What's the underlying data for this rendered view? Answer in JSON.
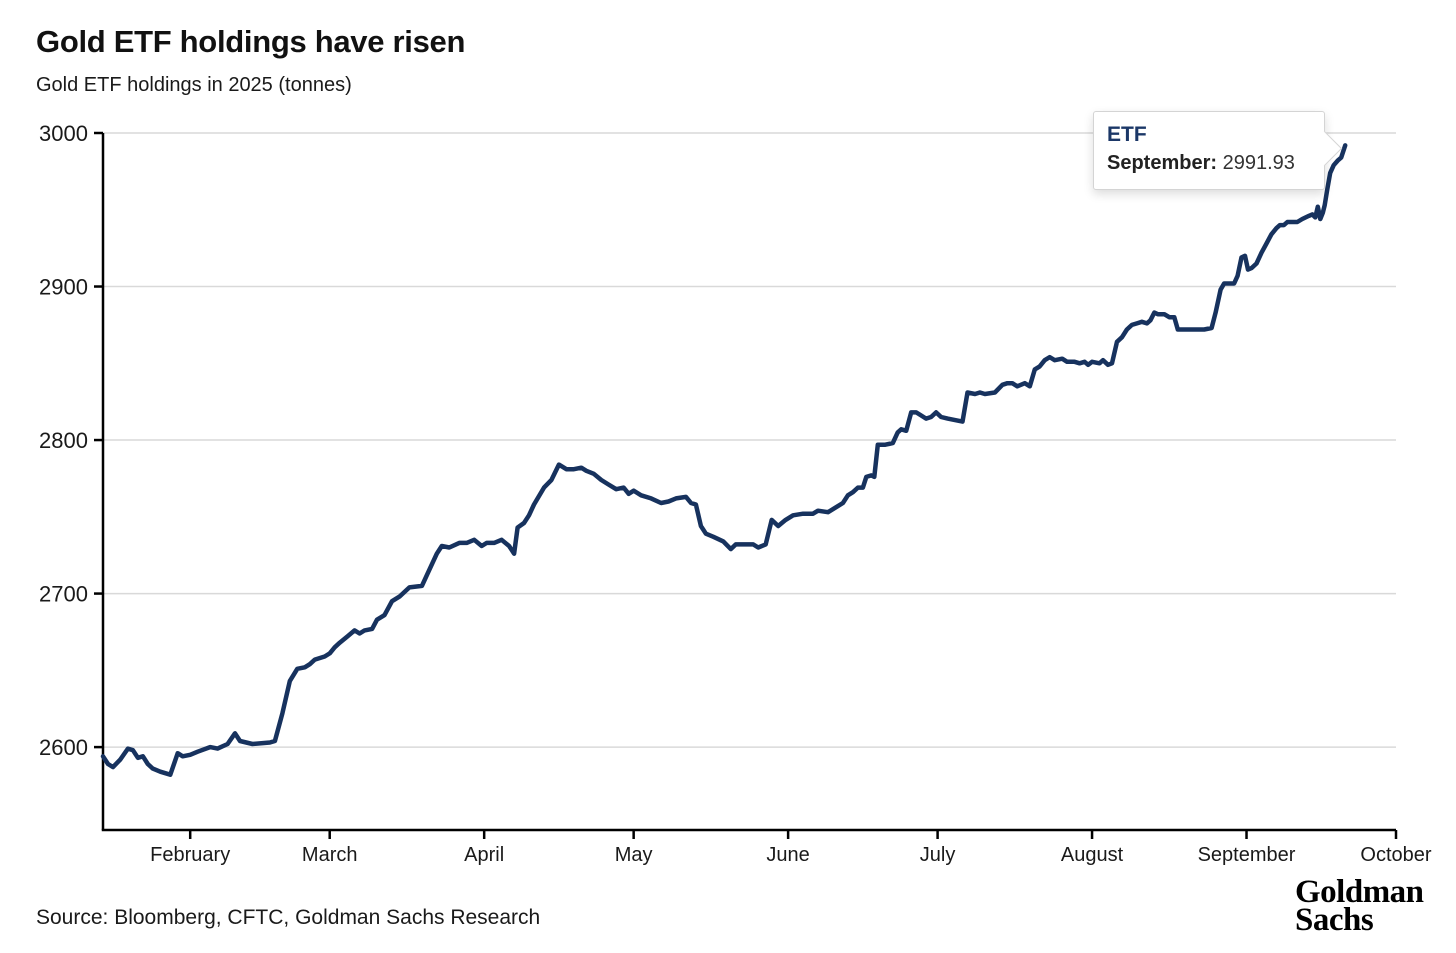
{
  "header": {
    "title": "Gold ETF holdings have risen",
    "subtitle": "Gold ETF holdings in 2025 (tonnes)"
  },
  "tooltip": {
    "series": "ETF",
    "month_label": "September:",
    "value": "2991.93"
  },
  "footer": {
    "source": "Source: Bloomberg, CFTC, Goldman Sachs Research",
    "logo_line1": "Goldman",
    "logo_line2": "Sachs"
  },
  "chart_data": {
    "type": "line",
    "title": "Gold ETF holdings have risen",
    "subtitle": "Gold ETF holdings in 2025 (tonnes)",
    "unit": "tonnes",
    "year": "2025",
    "grid": "horizontal",
    "legend": "none",
    "line_color": "#17325e",
    "grid_color": "#d9d9d9",
    "axis_color": "#000000",
    "label_color": "#1a1a1a",
    "x_axis": {
      "tick_labels": [
        "February",
        "March",
        "April",
        "May",
        "June",
        "July",
        "August",
        "September",
        "October"
      ],
      "tick_days": [
        32,
        60,
        91,
        121,
        152,
        182,
        213,
        244,
        274
      ],
      "xlim_days": [
        14.5,
        274
      ]
    },
    "y_axis": {
      "ticks": [
        2600,
        2700,
        2800,
        2900,
        3000
      ],
      "ylim": [
        2546,
        3000
      ]
    },
    "annotation": {
      "series": "ETF",
      "month": "September",
      "value": 2991.93
    },
    "series": [
      {
        "name": "ETF",
        "points": [
          [
            14.5,
            2594
          ],
          [
            15.5,
            2589
          ],
          [
            16.5,
            2587
          ],
          [
            18,
            2592
          ],
          [
            19.5,
            2599
          ],
          [
            20.5,
            2598
          ],
          [
            21.5,
            2593
          ],
          [
            22.5,
            2594
          ],
          [
            23.5,
            2589
          ],
          [
            24.5,
            2586
          ],
          [
            26,
            2584
          ],
          [
            28,
            2582
          ],
          [
            29.5,
            2596
          ],
          [
            30.5,
            2594
          ],
          [
            32,
            2595
          ],
          [
            33.5,
            2597
          ],
          [
            36,
            2600
          ],
          [
            37.5,
            2599
          ],
          [
            39.5,
            2602
          ],
          [
            41,
            2609
          ],
          [
            42,
            2604
          ],
          [
            44.5,
            2602
          ],
          [
            48,
            2603
          ],
          [
            49,
            2604
          ],
          [
            50.5,
            2622
          ],
          [
            52,
            2643
          ],
          [
            53.5,
            2651
          ],
          [
            55,
            2652
          ],
          [
            56,
            2654
          ],
          [
            57,
            2657
          ],
          [
            59,
            2659
          ],
          [
            60,
            2661
          ],
          [
            61,
            2665
          ],
          [
            62,
            2668
          ],
          [
            63.5,
            2672
          ],
          [
            65,
            2676
          ],
          [
            66,
            2674
          ],
          [
            67,
            2676
          ],
          [
            68.5,
            2677
          ],
          [
            69.5,
            2683
          ],
          [
            71,
            2686
          ],
          [
            72.5,
            2695
          ],
          [
            74,
            2698
          ],
          [
            76,
            2704
          ],
          [
            78.5,
            2705
          ],
          [
            79.5,
            2712
          ],
          [
            81.5,
            2726
          ],
          [
            82.5,
            2731
          ],
          [
            84,
            2730
          ],
          [
            86,
            2733
          ],
          [
            87.5,
            2733
          ],
          [
            89,
            2735
          ],
          [
            90.5,
            2731
          ],
          [
            91.5,
            2733
          ],
          [
            93,
            2733
          ],
          [
            94.5,
            2735
          ],
          [
            96,
            2731
          ],
          [
            97,
            2726
          ],
          [
            97.7,
            2743
          ],
          [
            99,
            2746
          ],
          [
            100,
            2751
          ],
          [
            101,
            2758
          ],
          [
            103,
            2769
          ],
          [
            104.5,
            2774
          ],
          [
            106,
            2784
          ],
          [
            107.5,
            2781
          ],
          [
            109,
            2781
          ],
          [
            110.5,
            2782
          ],
          [
            111.5,
            2780
          ],
          [
            113,
            2778
          ],
          [
            114.5,
            2774
          ],
          [
            116,
            2771
          ],
          [
            117.5,
            2768
          ],
          [
            119,
            2769
          ],
          [
            120,
            2765
          ],
          [
            121,
            2767
          ],
          [
            122.5,
            2764
          ],
          [
            124.5,
            2762
          ],
          [
            126.5,
            2759
          ],
          [
            128,
            2760
          ],
          [
            129.5,
            2762
          ],
          [
            131.5,
            2763
          ],
          [
            132.5,
            2759
          ],
          [
            133.5,
            2758
          ],
          [
            134.5,
            2744
          ],
          [
            135.5,
            2739
          ],
          [
            137,
            2737
          ],
          [
            139,
            2734
          ],
          [
            140.5,
            2729
          ],
          [
            141.5,
            2732
          ],
          [
            143,
            2732
          ],
          [
            145,
            2732
          ],
          [
            146,
            2730
          ],
          [
            147.5,
            2732
          ],
          [
            148.7,
            2748
          ],
          [
            150,
            2744
          ],
          [
            151.5,
            2748
          ],
          [
            153,
            2751
          ],
          [
            155,
            2752
          ],
          [
            157,
            2752
          ],
          [
            158,
            2754
          ],
          [
            160,
            2753
          ],
          [
            161.5,
            2756
          ],
          [
            163,
            2759
          ],
          [
            164,
            2764
          ],
          [
            165,
            2766
          ],
          [
            166,
            2769
          ],
          [
            167,
            2769
          ],
          [
            167.7,
            2776
          ],
          [
            168.7,
            2777
          ],
          [
            169.3,
            2776
          ],
          [
            170,
            2797
          ],
          [
            171.5,
            2797
          ],
          [
            173,
            2798
          ],
          [
            174,
            2805
          ],
          [
            174.7,
            2807
          ],
          [
            175.7,
            2806
          ],
          [
            176.7,
            2818
          ],
          [
            177.7,
            2818
          ],
          [
            178.7,
            2816
          ],
          [
            179.7,
            2814
          ],
          [
            180.7,
            2815
          ],
          [
            181.7,
            2818
          ],
          [
            182.7,
            2815
          ],
          [
            184,
            2814
          ],
          [
            185.5,
            2813
          ],
          [
            187,
            2812
          ],
          [
            188,
            2831
          ],
          [
            189.5,
            2830
          ],
          [
            190.5,
            2831
          ],
          [
            191.5,
            2830
          ],
          [
            193.5,
            2831
          ],
          [
            195,
            2836
          ],
          [
            196,
            2837
          ],
          [
            197,
            2837
          ],
          [
            198,
            2835
          ],
          [
            199.5,
            2837
          ],
          [
            200.5,
            2835
          ],
          [
            201.5,
            2846
          ],
          [
            202.5,
            2848
          ],
          [
            203.5,
            2852
          ],
          [
            204.5,
            2854
          ],
          [
            205.5,
            2852
          ],
          [
            207,
            2853
          ],
          [
            208,
            2851
          ],
          [
            209.5,
            2851
          ],
          [
            210.5,
            2850
          ],
          [
            211.5,
            2851
          ],
          [
            212.2,
            2849
          ],
          [
            213,
            2851
          ],
          [
            214.5,
            2850
          ],
          [
            215.2,
            2852
          ],
          [
            216.2,
            2849
          ],
          [
            217,
            2850
          ],
          [
            218,
            2864
          ],
          [
            219,
            2867
          ],
          [
            220,
            2872
          ],
          [
            221,
            2875
          ],
          [
            222,
            2876
          ],
          [
            223,
            2877
          ],
          [
            224,
            2876
          ],
          [
            224.7,
            2878
          ],
          [
            225.5,
            2883
          ],
          [
            226.2,
            2882
          ],
          [
            227.5,
            2882
          ],
          [
            228.5,
            2880
          ],
          [
            229.5,
            2880
          ],
          [
            230.2,
            2872
          ],
          [
            231.5,
            2872
          ],
          [
            233.5,
            2872
          ],
          [
            235.5,
            2872
          ],
          [
            237,
            2873
          ],
          [
            237.8,
            2883
          ],
          [
            238.8,
            2898
          ],
          [
            239.5,
            2902
          ],
          [
            240.5,
            2902
          ],
          [
            241.5,
            2902
          ],
          [
            242.2,
            2907
          ],
          [
            243,
            2919
          ],
          [
            243.7,
            2920
          ],
          [
            244.3,
            2911
          ],
          [
            245,
            2912
          ],
          [
            246,
            2915
          ],
          [
            247,
            2922
          ],
          [
            248,
            2928
          ],
          [
            249,
            2934
          ],
          [
            250,
            2938
          ],
          [
            250.7,
            2940
          ],
          [
            251.5,
            2940
          ],
          [
            252.2,
            2942
          ],
          [
            253.5,
            2942
          ],
          [
            254.2,
            2942
          ],
          [
            255.2,
            2944
          ],
          [
            256.5,
            2946
          ],
          [
            257.2,
            2947
          ],
          [
            257.8,
            2945
          ],
          [
            258.3,
            2952
          ],
          [
            258.8,
            2944
          ],
          [
            259.3,
            2948
          ],
          [
            259.7,
            2953
          ],
          [
            260.2,
            2963
          ],
          [
            260.8,
            2974
          ],
          [
            261.5,
            2979
          ],
          [
            262.3,
            2982
          ],
          [
            263,
            2984
          ],
          [
            263.8,
            2991.93
          ]
        ]
      }
    ]
  }
}
